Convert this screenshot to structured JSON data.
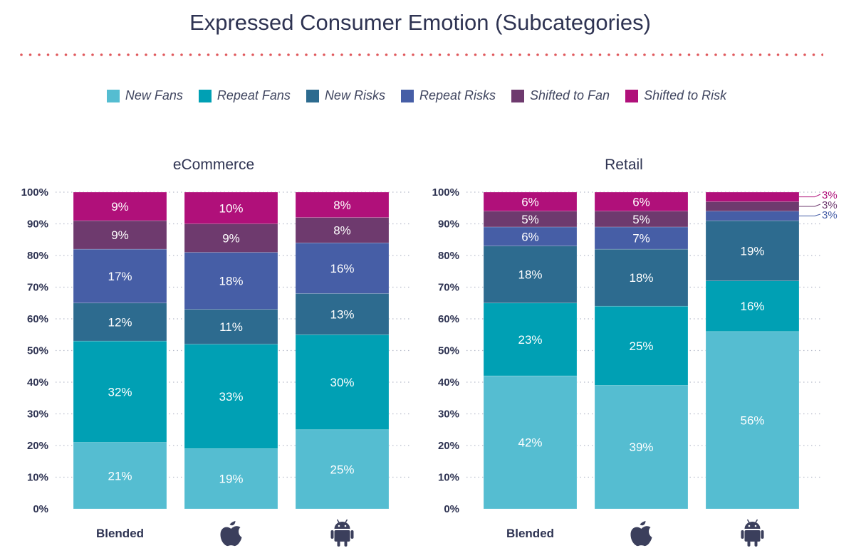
{
  "title": "Expressed Consumer Emotion (Subcategories)",
  "legend": [
    {
      "label": "New Fans",
      "color": "#55bdd1"
    },
    {
      "label": "Repeat Fans",
      "color": "#00a0b4"
    },
    {
      "label": "New Risks",
      "color": "#2d6b8f"
    },
    {
      "label": "Repeat Risks",
      "color": "#465ea6"
    },
    {
      "label": "Shifted to Fan",
      "color": "#6e3a6e"
    },
    {
      "label": "Shifted to Risk",
      "color": "#b0107a"
    }
  ],
  "chart_data": [
    {
      "type": "bar",
      "stacked": true,
      "title": "eCommerce",
      "categories": [
        "Blended",
        "",
        ""
      ],
      "category_icons": [
        "",
        "apple-icon",
        "android-icon"
      ],
      "yticks": [
        "0%",
        "10%",
        "20%",
        "30%",
        "40%",
        "50%",
        "60%",
        "70%",
        "80%",
        "90%",
        "100%"
      ],
      "ylim": [
        0,
        100
      ],
      "series": [
        {
          "name": "New Fans",
          "values": [
            21,
            19,
            25
          ],
          "labels": [
            "21%",
            "19%",
            "25%"
          ]
        },
        {
          "name": "Repeat Fans",
          "values": [
            32,
            33,
            30
          ],
          "labels": [
            "32%",
            "33%",
            "30%"
          ]
        },
        {
          "name": "New Risks",
          "values": [
            12,
            11,
            13
          ],
          "labels": [
            "12%",
            "11%",
            "13%"
          ]
        },
        {
          "name": "Repeat Risks",
          "values": [
            17,
            18,
            16
          ],
          "labels": [
            "17%",
            "18%",
            "16%"
          ]
        },
        {
          "name": "Shifted to Fan",
          "values": [
            9,
            9,
            8
          ],
          "labels": [
            "9%",
            "9%",
            "8%"
          ]
        },
        {
          "name": "Shifted to Risk",
          "values": [
            9,
            10,
            8
          ],
          "labels": [
            "9%",
            "10%",
            "8%"
          ]
        }
      ],
      "grid": true
    },
    {
      "type": "bar",
      "stacked": true,
      "title": "Retail",
      "categories": [
        "Blended",
        "",
        ""
      ],
      "category_icons": [
        "",
        "apple-icon",
        "android-icon"
      ],
      "yticks": [
        "0%",
        "10%",
        "20%",
        "30%",
        "40%",
        "50%",
        "60%",
        "70%",
        "80%",
        "90%",
        "100%"
      ],
      "ylim": [
        0,
        100
      ],
      "series": [
        {
          "name": "New Fans",
          "values": [
            42,
            39,
            56
          ],
          "labels": [
            "42%",
            "39%",
            "56%"
          ]
        },
        {
          "name": "Repeat Fans",
          "values": [
            23,
            25,
            16
          ],
          "labels": [
            "23%",
            "25%",
            "16%"
          ]
        },
        {
          "name": "New Risks",
          "values": [
            18,
            18,
            19
          ],
          "labels": [
            "18%",
            "18%",
            "19%"
          ]
        },
        {
          "name": "Repeat Risks",
          "values": [
            6,
            7,
            3
          ],
          "labels": [
            "6%",
            "7%",
            "3%"
          ]
        },
        {
          "name": "Shifted to Fan",
          "values": [
            5,
            5,
            3
          ],
          "labels": [
            "5%",
            "5%",
            "3%"
          ]
        },
        {
          "name": "Shifted to Risk",
          "values": [
            6,
            6,
            3
          ],
          "labels": [
            "6%",
            "6%",
            "3%"
          ]
        }
      ],
      "outside_labels_last_bar": true,
      "grid": true
    }
  ]
}
